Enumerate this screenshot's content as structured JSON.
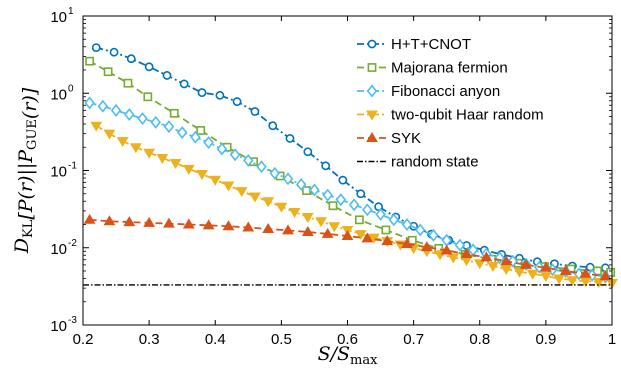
{
  "chart_data": {
    "type": "line",
    "title": "",
    "xlabel": "S/S_max",
    "ylabel": "D_KL[P(r)||P_GUE(r)]",
    "xlim": [
      0.2,
      1.0
    ],
    "ylim": [
      0.001,
      10
    ],
    "yscale": "log",
    "x_ticks": [
      "0.2",
      "0.3",
      "0.4",
      "0.5",
      "0.6",
      "0.7",
      "0.8",
      "0.9",
      "1"
    ],
    "y_ticks": [
      {
        "base": "10",
        "exp": "-3"
      },
      {
        "base": "10",
        "exp": "-2"
      },
      {
        "base": "10",
        "exp": "-1"
      },
      {
        "base": "10",
        "exp": "0"
      },
      {
        "base": "10",
        "exp": "1"
      }
    ],
    "grid": false,
    "legend_position": "top-right",
    "series": [
      {
        "name": "H+T+CNOT",
        "color": "#0072BD",
        "marker": "circle",
        "linestyle": "dash-dot",
        "x": [
          0.22,
          0.247,
          0.273,
          0.3,
          0.327,
          0.353,
          0.38,
          0.407,
          0.433,
          0.46,
          0.487,
          0.513,
          0.54,
          0.567,
          0.593,
          0.62,
          0.647,
          0.673,
          0.7,
          0.727,
          0.753,
          0.78,
          0.807,
          0.833,
          0.86,
          0.887,
          0.913,
          0.94,
          0.967,
          0.99
        ],
        "y": [
          3.9,
          3.4,
          2.8,
          2.2,
          1.7,
          1.32,
          1.02,
          0.94,
          0.78,
          0.58,
          0.38,
          0.26,
          0.175,
          0.115,
          0.075,
          0.05,
          0.034,
          0.025,
          0.019,
          0.015,
          0.0125,
          0.0107,
          0.0093,
          0.0082,
          0.0073,
          0.0066,
          0.0062,
          0.0058,
          0.0056,
          0.0055
        ]
      },
      {
        "name": "Majorana fermion",
        "color": "#77AC30",
        "marker": "square",
        "linestyle": "dashed",
        "x": [
          0.21,
          0.238,
          0.268,
          0.298,
          0.338,
          0.378,
          0.418,
          0.458,
          0.498,
          0.538,
          0.578,
          0.618,
          0.658,
          0.698,
          0.738,
          0.778,
          0.818,
          0.858,
          0.898,
          0.938,
          0.978,
          0.998
        ],
        "y": [
          2.6,
          1.9,
          1.35,
          0.9,
          0.55,
          0.33,
          0.2,
          0.13,
          0.085,
          0.055,
          0.035,
          0.023,
          0.017,
          0.0125,
          0.0098,
          0.0082,
          0.0071,
          0.0063,
          0.0057,
          0.0053,
          0.005,
          0.0048
        ]
      },
      {
        "name": "Fibonacci anyon",
        "color": "#4DBEEE",
        "marker": "diamond",
        "linestyle": "dash-dot",
        "x": [
          0.21,
          0.23,
          0.25,
          0.27,
          0.29,
          0.31,
          0.33,
          0.35,
          0.37,
          0.39,
          0.41,
          0.43,
          0.45,
          0.47,
          0.49,
          0.51,
          0.53,
          0.55,
          0.57,
          0.59,
          0.61,
          0.63,
          0.65,
          0.67,
          0.69,
          0.71,
          0.73,
          0.75,
          0.77,
          0.79,
          0.81,
          0.83,
          0.85,
          0.87,
          0.89,
          0.91,
          0.93,
          0.95,
          0.97,
          0.99
        ],
        "y": [
          0.75,
          0.68,
          0.6,
          0.53,
          0.47,
          0.42,
          0.37,
          0.31,
          0.27,
          0.23,
          0.19,
          0.16,
          0.135,
          0.112,
          0.092,
          0.078,
          0.066,
          0.056,
          0.048,
          0.042,
          0.036,
          0.031,
          0.027,
          0.023,
          0.02,
          0.017,
          0.0145,
          0.0125,
          0.0108,
          0.0094,
          0.0083,
          0.0074,
          0.0067,
          0.0061,
          0.0056,
          0.0052,
          0.0049,
          0.0046,
          0.0044,
          0.0042
        ]
      },
      {
        "name": "two-qubit Haar random",
        "color": "#EDB120",
        "marker": "triangle-down",
        "linestyle": "dash-dot",
        "x": [
          0.22,
          0.24,
          0.26,
          0.28,
          0.3,
          0.32,
          0.34,
          0.36,
          0.38,
          0.4,
          0.42,
          0.44,
          0.46,
          0.48,
          0.5,
          0.52,
          0.54,
          0.56,
          0.58,
          0.6,
          0.62,
          0.64,
          0.66,
          0.68,
          0.7,
          0.72,
          0.74,
          0.76,
          0.78,
          0.8,
          0.82,
          0.84,
          0.86,
          0.88,
          0.9,
          0.92,
          0.94,
          0.96,
          0.98,
          1.0
        ],
        "y": [
          0.38,
          0.3,
          0.24,
          0.2,
          0.17,
          0.145,
          0.125,
          0.105,
          0.09,
          0.076,
          0.064,
          0.054,
          0.046,
          0.04,
          0.034,
          0.029,
          0.025,
          0.022,
          0.019,
          0.017,
          0.015,
          0.0135,
          0.0122,
          0.011,
          0.0099,
          0.009,
          0.0082,
          0.0075,
          0.0069,
          0.0063,
          0.0058,
          0.0053,
          0.0049,
          0.0046,
          0.0043,
          0.004,
          0.0038,
          0.0037,
          0.0036,
          0.0035
        ]
      },
      {
        "name": "SYK",
        "color": "#D95319",
        "marker": "triangle-up",
        "linestyle": "dashed",
        "x": [
          0.21,
          0.24,
          0.27,
          0.3,
          0.33,
          0.36,
          0.39,
          0.42,
          0.45,
          0.48,
          0.51,
          0.54,
          0.57,
          0.6,
          0.63,
          0.66,
          0.69,
          0.72,
          0.75,
          0.78,
          0.81,
          0.84,
          0.87,
          0.9,
          0.93,
          0.96,
          0.99
        ],
        "y": [
          0.023,
          0.022,
          0.0215,
          0.021,
          0.0205,
          0.02,
          0.0195,
          0.019,
          0.0183,
          0.0175,
          0.0168,
          0.016,
          0.0151,
          0.0142,
          0.0132,
          0.0122,
          0.0112,
          0.0102,
          0.0092,
          0.0083,
          0.0075,
          0.0067,
          0.006,
          0.0055,
          0.005,
          0.0046,
          0.0043
        ]
      },
      {
        "name": "random state",
        "color": "#000000",
        "marker": "none",
        "linestyle": "dash-dot",
        "x": [
          0.2,
          1.0
        ],
        "y": [
          0.0033,
          0.0033
        ]
      }
    ]
  }
}
